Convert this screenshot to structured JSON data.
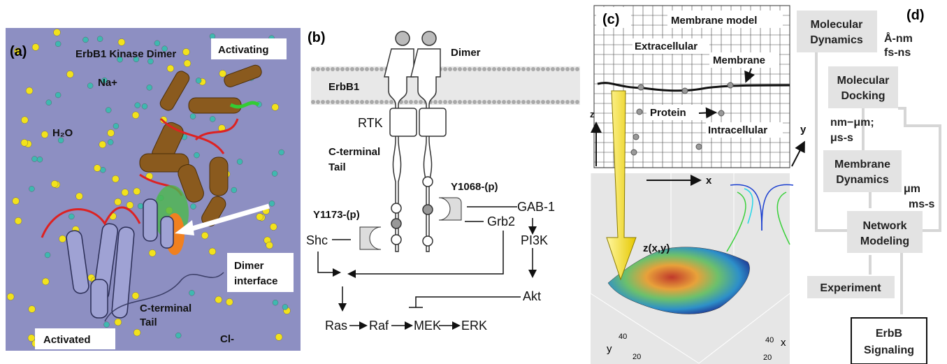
{
  "panel_a": {
    "label": "(a)",
    "title": "ErbB1 Kinase Dimer",
    "activating": "Activating",
    "na": "Na+",
    "water": "H₂O",
    "dimer_interface": [
      "Dimer",
      "interface"
    ],
    "c_terminal": [
      "C-terminal",
      "Tail"
    ],
    "activated": "Activated",
    "cl": "Cl-"
  },
  "panel_b": {
    "label": "(b)",
    "erbb1": "ErbB1",
    "dimer": "Dimer",
    "rtk": "RTK",
    "c_terminal": [
      "C-terminal",
      "Tail"
    ],
    "y1068": "Y1068-(p)",
    "y1173": "Y1173-(p)",
    "gab1": "GAB-1",
    "grb2": "Grb2",
    "shc": "Shc",
    "pi3k": "PI3K",
    "akt": "Akt",
    "ras": "Ras",
    "raf": "Raf",
    "mek": "MEK",
    "erk": "ERK"
  },
  "panel_c": {
    "label": "(c)",
    "title": "Membrane model",
    "extracellular": "Extracellular",
    "membrane": "Membrane",
    "protein": "Protein",
    "intracellular": "Intracellular",
    "axis_z": "z",
    "axis_x": "x",
    "axis_y": "y",
    "surface": "z(x,y)",
    "plot_ticks_y": [
      "40",
      "20"
    ],
    "plot_ticks_x": [
      "40",
      "20"
    ],
    "plot_axis_y": "y",
    "plot_axis_x": "x"
  },
  "panel_d": {
    "label": "(d)",
    "md": [
      "Molecular",
      "Dynamics"
    ],
    "md_scale": [
      "Å-nm",
      "fs-ns"
    ],
    "docking": [
      "Molecular",
      "Docking"
    ],
    "docking_scale": [
      "nm−μm;",
      "μs-s"
    ],
    "membrane": [
      "Membrane",
      "Dynamics"
    ],
    "membrane_scale": [
      "μm",
      "ms-s"
    ],
    "network": [
      "Network",
      "Modeling"
    ],
    "experiment": "Experiment",
    "signaling": [
      "ErbB",
      "Signaling"
    ]
  }
}
